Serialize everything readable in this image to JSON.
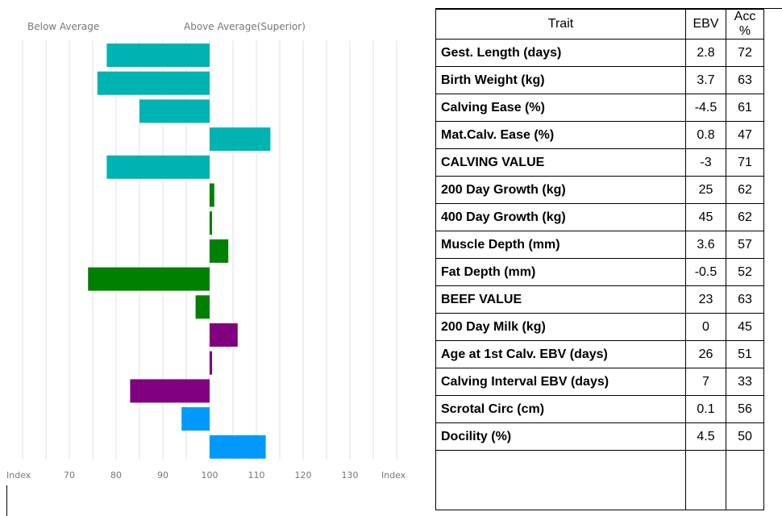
{
  "chart_data": {
    "type": "bar",
    "orientation": "horizontal",
    "header_left": "Below Average",
    "header_right": "Above Average(Superior)",
    "xlabel_left": "Index",
    "xlabel_right": "Index",
    "xticks": [
      70,
      80,
      90,
      100,
      110,
      120,
      130
    ],
    "xlim": [
      58,
      140
    ],
    "baseline": 100,
    "grid": true,
    "values": [
      78,
      76,
      85,
      113,
      78,
      101,
      100.3,
      104,
      74,
      97,
      106,
      100.3,
      83,
      94,
      112
    ],
    "colors": [
      "#00b3b3",
      "#00b3b3",
      "#00b3b3",
      "#00b3b3",
      "#00b3b3",
      "#008000",
      "#008000",
      "#008000",
      "#008000",
      "#008000",
      "#800080",
      "#800080",
      "#800080",
      "#0099ff",
      "#0099ff"
    ]
  },
  "table": {
    "headers": [
      "Trait",
      "EBV",
      "Acc %"
    ],
    "rows": [
      {
        "trait": "Gest. Length (days)",
        "ebv": "2.8",
        "acc": "72"
      },
      {
        "trait": "Birth Weight (kg)",
        "ebv": "3.7",
        "acc": "63"
      },
      {
        "trait": "Calving Ease (%)",
        "ebv": "-4.5",
        "acc": "61"
      },
      {
        "trait": "Mat.Calv. Ease (%)",
        "ebv": "0.8",
        "acc": "47"
      },
      {
        "trait": "CALVING VALUE",
        "ebv": "-3",
        "acc": "71"
      },
      {
        "trait": "200 Day Growth (kg)",
        "ebv": "25",
        "acc": "62"
      },
      {
        "trait": "400 Day Growth (kg)",
        "ebv": "45",
        "acc": "62"
      },
      {
        "trait": "Muscle Depth (mm)",
        "ebv": "3.6",
        "acc": "57"
      },
      {
        "trait": "Fat Depth (mm)",
        "ebv": "-0.5",
        "acc": "52"
      },
      {
        "trait": "BEEF VALUE",
        "ebv": "23",
        "acc": "63"
      },
      {
        "trait": "200 Day Milk (kg)",
        "ebv": "0",
        "acc": "45"
      },
      {
        "trait": "Age at 1st Calv. EBV (days)",
        "ebv": "26",
        "acc": "51"
      },
      {
        "trait": "Calving Interval EBV (days)",
        "ebv": "7",
        "acc": "33"
      },
      {
        "trait": "Scrotal Circ (cm)",
        "ebv": "0.1",
        "acc": "56"
      },
      {
        "trait": "Docility (%)",
        "ebv": "4.5",
        "acc": "50"
      }
    ]
  }
}
